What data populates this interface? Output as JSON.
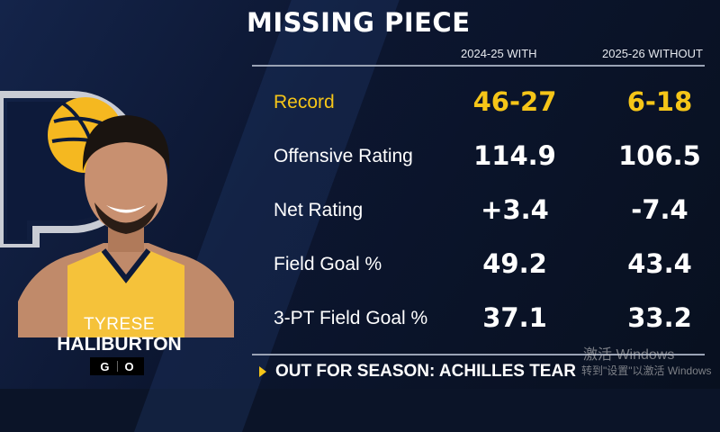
{
  "title": "MISSING PIECE",
  "columns": [
    "2024-25 WITH",
    "2025-26 WITHOUT"
  ],
  "rows": [
    {
      "label": "Record",
      "with": "46-27",
      "without": "6-18",
      "highlight": true
    },
    {
      "label": "Offensive Rating",
      "with": "114.9",
      "without": "106.5"
    },
    {
      "label": "Net Rating",
      "with": "+3.4",
      "without": "-7.4"
    },
    {
      "label": "Field Goal %",
      "with": "49.2",
      "without": "43.4"
    },
    {
      "label": "3-PT Field Goal %",
      "with": "37.1",
      "without": "33.2"
    }
  ],
  "player": {
    "first": "TYRESE",
    "last": "HALIBURTON",
    "position": [
      "G",
      "O"
    ],
    "team_logo": "indiana-pacers-logo"
  },
  "footer": "OUT FOR SEASON: ACHILLES TEAR",
  "watermark": {
    "line1": "激活 Windows",
    "line2": "转到\"设置\"以激活 Windows"
  },
  "colors": {
    "accent": "#f5c518",
    "background": "#0b1428"
  }
}
